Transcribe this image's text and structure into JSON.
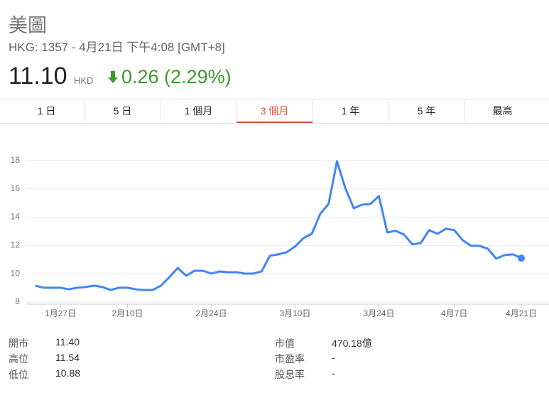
{
  "header": {
    "title": "美圖",
    "subtitle": "HKG: 1357 - 4月21日 下午4:08 [GMT+8]",
    "price": "11.10",
    "currency": "HKD",
    "change": "0.26 (2.29%)"
  },
  "tabs": {
    "items": [
      "1 日",
      "5 日",
      "1 個月",
      "3 個月",
      "1 年",
      "5 年",
      "最高"
    ],
    "selected": 3
  },
  "chart_data": {
    "type": "line",
    "color": "#4285f4",
    "x": [
      0,
      1,
      2,
      3,
      4,
      5,
      6,
      7,
      8,
      9,
      10,
      11,
      12,
      13,
      14,
      15,
      16,
      17,
      18,
      19,
      20,
      21,
      22,
      23,
      24,
      25,
      26,
      27,
      28,
      29,
      30,
      31,
      32,
      33,
      34,
      35,
      36,
      37,
      38,
      39,
      40,
      41,
      42,
      43,
      44,
      45,
      46,
      47,
      48,
      49,
      50,
      51,
      52,
      53,
      54,
      55,
      56,
      57,
      58
    ],
    "values": [
      9.16,
      9.01,
      9.01,
      9.01,
      8.9,
      9.01,
      9.06,
      9.16,
      9.06,
      8.85,
      9.01,
      9.01,
      8.9,
      8.85,
      8.85,
      9.16,
      9.76,
      10.41,
      9.86,
      10.21,
      10.21,
      10.01,
      10.16,
      10.11,
      10.11,
      10.01,
      10.01,
      10.16,
      11.27,
      11.37,
      11.52,
      11.92,
      12.52,
      12.82,
      14.23,
      14.93,
      17.95,
      16.04,
      14.63,
      14.88,
      14.93,
      15.49,
      12.92,
      13.03,
      12.77,
      12.07,
      12.17,
      13.08,
      12.82,
      13.18,
      13.08,
      12.37,
      11.97,
      11.97,
      11.77,
      11.07,
      11.32,
      11.37,
      11.1
    ],
    "xlim": [
      -1.5,
      61.3
    ],
    "ylim": [
      8,
      20
    ],
    "yticks": [
      8,
      10,
      12,
      14,
      16,
      18
    ],
    "xticks": [
      {
        "value": 3,
        "label": "1月27日"
      },
      {
        "value": 11,
        "label": "2月10日"
      },
      {
        "value": 21,
        "label": "2月24日"
      },
      {
        "value": 31,
        "label": "3月10日"
      },
      {
        "value": 41,
        "label": "3月24日"
      },
      {
        "value": 50,
        "label": "4月7日"
      },
      {
        "value": 58,
        "label": "4月21日"
      }
    ],
    "grid": true
  },
  "stats": {
    "left": [
      [
        "開市",
        "11.40"
      ],
      [
        "高位",
        "11.54"
      ],
      [
        "低位",
        "10.88"
      ]
    ],
    "right": [
      [
        "市值",
        "470.18億"
      ],
      [
        "市盈率",
        "-"
      ],
      [
        "股息率",
        "-"
      ]
    ]
  }
}
